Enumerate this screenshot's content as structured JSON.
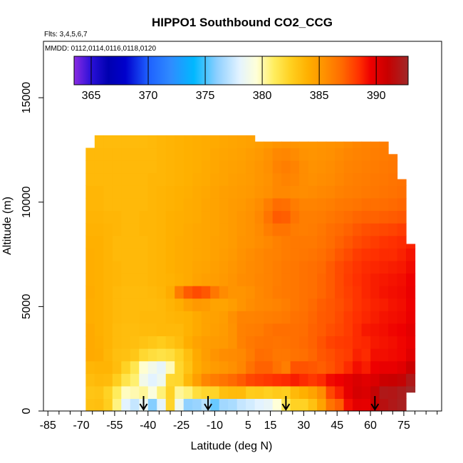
{
  "chart_data": {
    "type": "heatmap",
    "title": "HIPPO1 Southbound CO2_CCG",
    "flights_label": "Flts: 3,4,5,6,7",
    "dates_label": "MMDD: 0112,0114,0116,0118,0120",
    "xlabel": "Latitude (deg N)",
    "ylabel": "Altitude (m)",
    "xlim": [
      -87,
      92
    ],
    "ylim": [
      0,
      17700
    ],
    "x_ticks": [
      -85,
      -70,
      -55,
      -40,
      -25,
      -10,
      5,
      15,
      30,
      45,
      60,
      75
    ],
    "x_minor_ticks": [
      -80,
      -75,
      -65,
      -60,
      -50,
      -45,
      -35,
      -30,
      -20,
      -15,
      -5,
      0,
      10,
      20,
      25,
      35,
      40,
      50,
      55,
      65,
      70,
      80,
      85,
      90
    ],
    "y_ticks": [
      0,
      5000,
      10000,
      15000
    ],
    "colorbar": {
      "min": 363.5,
      "max": 392.8,
      "ticks": [
        365,
        370,
        375,
        380,
        385,
        390
      ],
      "stops": [
        [
          363.5,
          "#8a2be2"
        ],
        [
          365.0,
          "#2a10d8"
        ],
        [
          366.5,
          "#0000b0"
        ],
        [
          368.0,
          "#0000cc"
        ],
        [
          370.0,
          "#1e60ff"
        ],
        [
          372.0,
          "#2f8cff"
        ],
        [
          374.0,
          "#00b8ff"
        ],
        [
          376.0,
          "#8ccfff"
        ],
        [
          378.0,
          "#e3f3ff"
        ],
        [
          379.5,
          "#ffffd8"
        ],
        [
          381.0,
          "#ffee60"
        ],
        [
          382.5,
          "#ffd020"
        ],
        [
          384.0,
          "#ffb000"
        ],
        [
          385.5,
          "#ff9000"
        ],
        [
          387.0,
          "#ff6a00"
        ],
        [
          388.5,
          "#ff3000"
        ],
        [
          389.5,
          "#ee0000"
        ],
        [
          391.0,
          "#c80000"
        ],
        [
          392.8,
          "#a02828"
        ]
      ]
    },
    "profile_arrows_lat": [
      -42,
      -13,
      22,
      62
    ],
    "lat_bins": [
      -68,
      -64,
      -60,
      -56,
      -52,
      -48,
      -44,
      -40,
      -36,
      -32,
      -28,
      -24,
      -20,
      -16,
      -12,
      -8,
      -4,
      0,
      4,
      8,
      12,
      16,
      20,
      24,
      28,
      32,
      36,
      40,
      44,
      48,
      52,
      56,
      60,
      64,
      68,
      72,
      76,
      80
    ],
    "alt_bins": [
      0,
      600,
      1200,
      1800,
      2400,
      3000,
      3600,
      4200,
      4800,
      5400,
      6000,
      6600,
      7200,
      7800,
      8400,
      9000,
      9600,
      10200,
      10800,
      11400,
      12000,
      12600,
      13200
    ],
    "values": [
      [
        383.2,
        383.3,
        382.6,
        380.6,
        378.0,
        377.3,
        378.5,
        375.9,
        378.1,
        382.3,
        378.6,
        376.1,
        376.3,
        377.0,
        375.5,
        376.5,
        376.7,
        377.3,
        377.6,
        378.0,
        378.3,
        379.5,
        381.3,
        382.4,
        382.4,
        383.2,
        384.6,
        386.6,
        387.3,
        389.2,
        389.9,
        389.8,
        390.9,
        391.7,
        392.1,
        392.4,
        393.0
      ],
      [
        383.0,
        383.1,
        382.4,
        381.1,
        379.8,
        380.0,
        380.3,
        379.3,
        380.7,
        382.4,
        380.3,
        380.7,
        381.8,
        382.2,
        382.3,
        383.3,
        383.5,
        383.5,
        382.7,
        382.8,
        382.5,
        382.8,
        382.6,
        383.6,
        384.0,
        384.6,
        385.6,
        387.9,
        388.8,
        389.8,
        390.5,
        390.3,
        391.2,
        392.1,
        392.0,
        392.3,
        393.1
      ],
      [
        383.4,
        383.6,
        383.5,
        382.6,
        381.5,
        380.8,
        378.8,
        378.0,
        378.6,
        382.1,
        382.2,
        383.6,
        384.8,
        385.9,
        386.3,
        386.6,
        387.0,
        387.4,
        387.9,
        388.1,
        388.3,
        388.5,
        388.6,
        388.9,
        388.6,
        388.3,
        388.6,
        389.3,
        389.5,
        389.9,
        390.3,
        390.0,
        390.3,
        390.9,
        391.0,
        391.2,
        392.1
      ],
      [
        383.7,
        383.8,
        383.8,
        383.4,
        382.4,
        381.4,
        379.6,
        378.8,
        378.2,
        379.9,
        382.2,
        383.1,
        384.2,
        384.7,
        385.0,
        385.2,
        385.5,
        385.9,
        386.7,
        387.2,
        387.2,
        386.7,
        386.2,
        387.6,
        387.6,
        387.5,
        387.3,
        387.6,
        388.0,
        388.6,
        389.2,
        388.9,
        389.5,
        389.7,
        389.7,
        390.0,
        390.9
      ],
      [
        384.3,
        384.2,
        383.7,
        383.3,
        383.2,
        382.9,
        382.1,
        381.8,
        381.6,
        381.8,
        382.4,
        383.3,
        384.3,
        384.9,
        385.3,
        385.6,
        385.7,
        385.8,
        386.3,
        386.9,
        386.8,
        386.5,
        386.5,
        386.7,
        386.8,
        387.1,
        387.5,
        387.7,
        388.0,
        388.2,
        388.8,
        388.6,
        389.2,
        389.2,
        389.3,
        389.4,
        390.0
      ],
      [
        384.3,
        384.1,
        383.8,
        383.5,
        383.4,
        383.3,
        383.1,
        382.9,
        382.7,
        383.0,
        383.4,
        384.1,
        384.6,
        384.9,
        385.0,
        385.1,
        385.4,
        386.1,
        386.4,
        386.6,
        386.7,
        386.6,
        386.7,
        386.8,
        387.0,
        387.2,
        387.6,
        388.0,
        388.2,
        388.3,
        388.6,
        388.7,
        389.0,
        389.1,
        389.2,
        389.4,
        389.7
      ],
      [
        384.3,
        384.0,
        383.8,
        383.5,
        383.4,
        383.4,
        383.5,
        383.5,
        383.6,
        383.6,
        383.6,
        383.9,
        384.3,
        384.6,
        384.8,
        385.0,
        385.4,
        386.1,
        386.2,
        386.3,
        386.6,
        386.8,
        386.8,
        386.8,
        386.9,
        387.2,
        387.4,
        387.7,
        387.9,
        388.2,
        388.6,
        389.0,
        389.1,
        389.2,
        389.4,
        389.5,
        389.9
      ],
      [
        384.1,
        384.0,
        383.8,
        383.6,
        383.5,
        383.5,
        383.6,
        383.6,
        383.6,
        383.7,
        383.8,
        383.9,
        384.3,
        384.6,
        384.7,
        384.9,
        385.5,
        386.0,
        386.0,
        386.1,
        386.2,
        386.3,
        386.4,
        386.7,
        386.8,
        387.1,
        387.4,
        387.5,
        387.8,
        388.2,
        388.5,
        388.7,
        388.9,
        389.1,
        389.2,
        389.3,
        389.6
      ],
      [
        384.1,
        384.0,
        383.8,
        383.6,
        383.5,
        383.5,
        383.5,
        383.5,
        383.6,
        383.8,
        384.1,
        384.7,
        385.1,
        385.0,
        384.6,
        384.6,
        384.9,
        385.3,
        385.6,
        385.8,
        385.9,
        386.0,
        386.2,
        386.5,
        386.7,
        387.0,
        387.3,
        387.5,
        387.7,
        388.0,
        388.4,
        388.6,
        388.8,
        388.9,
        389.1,
        389.2,
        389.5
      ],
      [
        384.2,
        384.0,
        383.8,
        383.6,
        383.5,
        383.5,
        383.5,
        383.6,
        383.7,
        384.2,
        386.3,
        387.4,
        387.8,
        387.5,
        386.5,
        385.7,
        385.3,
        385.3,
        385.5,
        385.8,
        386.0,
        386.3,
        386.4,
        386.5,
        386.7,
        386.8,
        387.1,
        387.4,
        387.8,
        388.1,
        388.4,
        388.7,
        388.9,
        389.1,
        389.2,
        389.3,
        389.6
      ],
      [
        384.1,
        384.0,
        383.8,
        383.7,
        383.6,
        383.6,
        383.6,
        383.7,
        383.8,
        383.9,
        384.1,
        384.3,
        384.6,
        384.8,
        384.9,
        385.1,
        385.3,
        385.6,
        385.7,
        385.9,
        386.0,
        386.2,
        386.4,
        386.5,
        386.7,
        386.8,
        387.1,
        387.4,
        387.8,
        388.2,
        388.5,
        388.7,
        388.9,
        389.0,
        389.1,
        389.2,
        389.5
      ],
      [
        384.1,
        384.0,
        383.8,
        383.7,
        383.6,
        383.6,
        383.6,
        383.7,
        383.8,
        384.0,
        384.2,
        384.3,
        384.5,
        384.6,
        384.8,
        385.0,
        385.2,
        385.5,
        385.7,
        385.8,
        386.0,
        386.2,
        386.4,
        386.5,
        386.7,
        386.8,
        387.0,
        387.4,
        387.8,
        388.1,
        388.4,
        388.6,
        388.7,
        388.8,
        388.9,
        389.0,
        389.3
      ],
      [
        384.1,
        384.0,
        383.8,
        383.6,
        383.6,
        383.6,
        383.6,
        383.7,
        383.8,
        384.0,
        384.2,
        384.3,
        384.4,
        384.5,
        384.7,
        384.9,
        385.1,
        385.4,
        385.6,
        385.8,
        386.0,
        386.1,
        386.3,
        386.4,
        386.5,
        386.6,
        386.8,
        387.1,
        387.5,
        387.8,
        388.2,
        388.4,
        388.5,
        388.6,
        388.6,
        388.8,
        389.1
      ],
      [
        384.0,
        384.0,
        383.8,
        383.6,
        383.6,
        383.6,
        383.6,
        383.7,
        383.8,
        384.0,
        384.2,
        384.3,
        384.4,
        384.5,
        384.7,
        384.8,
        385.0,
        385.3,
        385.4,
        385.6,
        385.8,
        386.1,
        386.3,
        386.4,
        386.4,
        386.4,
        386.6,
        386.9,
        387.2,
        387.5,
        387.8,
        388.0,
        388.2,
        388.4,
        388.5,
        388.6,
        388.8
      ],
      [
        383.9,
        383.9,
        383.8,
        383.7,
        383.6,
        383.6,
        383.7,
        383.7,
        383.8,
        384.0,
        384.1,
        384.3,
        384.4,
        384.5,
        384.6,
        384.8,
        385.0,
        385.2,
        385.4,
        385.7,
        386.2,
        386.6,
        386.6,
        386.3,
        386.2,
        386.3,
        386.5,
        386.8,
        387.0,
        387.2,
        387.5,
        387.7,
        387.8,
        387.9,
        388.0,
        388.2,
        388.4
      ],
      [
        383.8,
        383.8,
        383.7,
        383.7,
        383.6,
        383.6,
        383.7,
        383.7,
        383.8,
        384.0,
        384.1,
        384.2,
        384.3,
        384.5,
        384.6,
        384.8,
        385.0,
        385.2,
        385.4,
        385.8,
        386.6,
        387.4,
        387.3,
        386.6,
        386.2,
        386.2,
        386.3,
        386.5,
        386.7,
        386.9,
        387.1,
        387.2,
        387.2,
        387.3,
        387.4,
        387.5,
        387.6
      ],
      [
        383.7,
        383.7,
        383.6,
        383.6,
        383.6,
        383.6,
        383.6,
        383.7,
        383.8,
        383.9,
        384.0,
        384.2,
        384.3,
        384.5,
        384.6,
        384.8,
        385.0,
        385.1,
        385.3,
        385.6,
        386.2,
        386.9,
        386.8,
        386.3,
        386.0,
        386.0,
        386.1,
        386.2,
        386.4,
        386.5,
        386.6,
        386.8,
        386.8,
        386.9,
        387.0,
        387.1,
        387.1
      ],
      [
        383.7,
        383.7,
        383.6,
        383.6,
        383.6,
        383.6,
        383.6,
        383.7,
        383.8,
        383.9,
        384.0,
        384.1,
        384.3,
        384.4,
        384.6,
        384.8,
        384.9,
        385.0,
        385.1,
        385.3,
        385.5,
        385.8,
        385.8,
        385.7,
        385.6,
        385.7,
        385.8,
        385.9,
        386.1,
        386.2,
        386.3,
        386.4,
        386.5,
        386.6,
        386.7,
        386.8,
        386.9
      ],
      [
        383.6,
        383.6,
        383.6,
        383.6,
        383.6,
        383.6,
        383.6,
        383.7,
        383.7,
        383.8,
        383.9,
        384.0,
        384.2,
        384.3,
        384.5,
        384.6,
        384.8,
        384.9,
        385.0,
        385.2,
        385.4,
        385.8,
        386.0,
        385.9,
        385.6,
        385.5,
        385.6,
        385.7,
        385.9,
        386.1,
        386.2,
        386.3,
        386.4,
        386.5,
        386.6,
        386.7,
        386.8
      ],
      [
        383.6,
        383.6,
        383.6,
        383.6,
        383.6,
        383.6,
        383.6,
        383.6,
        383.7,
        383.8,
        383.9,
        384.0,
        384.1,
        384.3,
        384.4,
        384.6,
        384.7,
        384.8,
        385.0,
        385.2,
        385.5,
        386.0,
        386.2,
        386.0,
        385.6,
        385.4,
        385.5,
        385.6,
        385.8,
        386.0,
        386.1,
        386.2,
        386.3,
        386.4,
        386.5,
        386.6,
        386.7
      ],
      [
        383.6,
        383.6,
        383.6,
        383.6,
        383.6,
        383.6,
        383.6,
        383.6,
        383.7,
        383.8,
        383.9,
        384.0,
        384.1,
        384.2,
        384.4,
        384.5,
        384.6,
        384.7,
        384.9,
        385.1,
        385.4,
        385.8,
        385.9,
        385.7,
        385.4,
        385.3,
        385.4,
        385.5,
        385.7,
        385.9,
        386.0,
        386.1,
        386.2,
        386.3,
        386.4,
        386.5,
        386.6
      ],
      [
        383.5,
        383.5,
        383.5,
        383.5,
        383.5,
        383.5,
        383.5,
        383.6,
        383.7,
        383.8,
        383.9,
        384.0,
        384.1,
        384.2,
        384.3,
        384.4,
        384.5,
        384.6,
        384.7,
        384.9,
        385.1,
        385.3,
        385.4,
        385.3,
        385.2,
        385.2,
        385.3,
        385.4,
        385.5,
        385.7,
        385.9,
        386.0,
        386.1,
        386.2,
        386.3,
        386.4,
        386.5
      ]
    ],
    "extent_top_alt_by_lat": [
      12600,
      13200,
      13450,
      13450,
      13450,
      13450,
      13450,
      13450,
      13450,
      13450,
      13450,
      13450,
      13450,
      13450,
      13450,
      13450,
      13450,
      13450,
      13450,
      12900,
      12900,
      12900,
      12900,
      12900,
      12900,
      12900,
      12900,
      12900,
      12900,
      12900,
      12900,
      12900,
      12900,
      12900,
      12300,
      11100,
      8000
    ],
    "extent_bottom_alt_by_lat": [
      0,
      0,
      0,
      0,
      0,
      0,
      0,
      0,
      0,
      0,
      0,
      0,
      0,
      0,
      0,
      0,
      0,
      0,
      0,
      0,
      0,
      0,
      0,
      0,
      0,
      0,
      0,
      0,
      0,
      0,
      0,
      0,
      0,
      0,
      0,
      0,
      900
    ]
  }
}
